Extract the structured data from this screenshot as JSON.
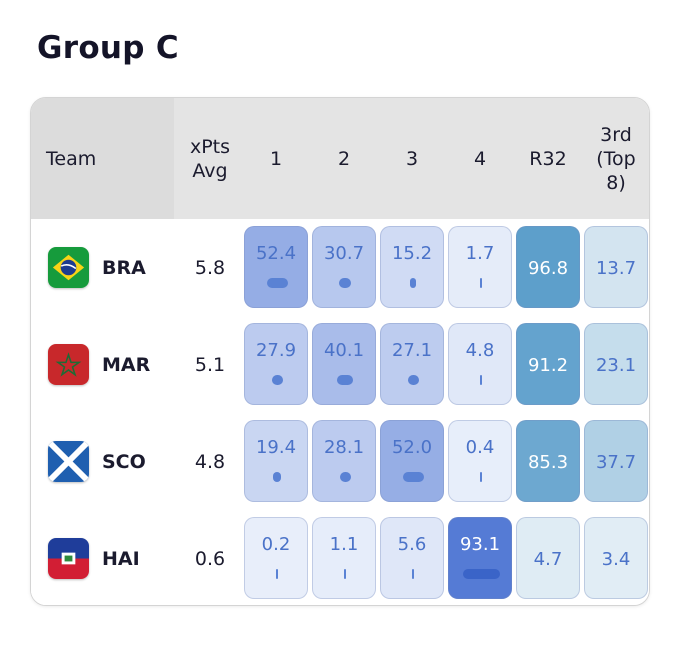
{
  "title": "Group C",
  "header": {
    "team": "Team",
    "xpts": "xPts\nAvg",
    "p1": "1",
    "p2": "2",
    "p3": "3",
    "p4": "4",
    "r32": "R32",
    "third": "3rd\n(Top\n8)"
  },
  "rows": [
    {
      "code": "BRA",
      "xpts": "5.8",
      "flag_icon": "brazil-flag-icon",
      "p1": "52.4",
      "p2": "30.7",
      "p3": "15.2",
      "p4": "1.7",
      "r32": "96.8",
      "third": "13.7"
    },
    {
      "code": "MAR",
      "xpts": "5.1",
      "flag_icon": "morocco-flag-icon",
      "p1": "27.9",
      "p2": "40.1",
      "p3": "27.1",
      "p4": "4.8",
      "r32": "91.2",
      "third": "23.1"
    },
    {
      "code": "SCO",
      "xpts": "4.8",
      "flag_icon": "scotland-flag-icon",
      "p1": "19.4",
      "p2": "28.1",
      "p3": "52.0",
      "p4": "0.4",
      "r32": "85.3",
      "third": "37.7"
    },
    {
      "code": "HAI",
      "xpts": "0.6",
      "flag_icon": "haiti-flag-icon",
      "p1": "0.2",
      "p2": "1.1",
      "p3": "5.6",
      "p4": "93.1",
      "r32": "4.7",
      "third": "3.4"
    }
  ],
  "colors": {
    "position_scale": "#4a72c8",
    "qualify_scale": "#4a90c0",
    "header_bg": "#e4e4e4"
  }
}
